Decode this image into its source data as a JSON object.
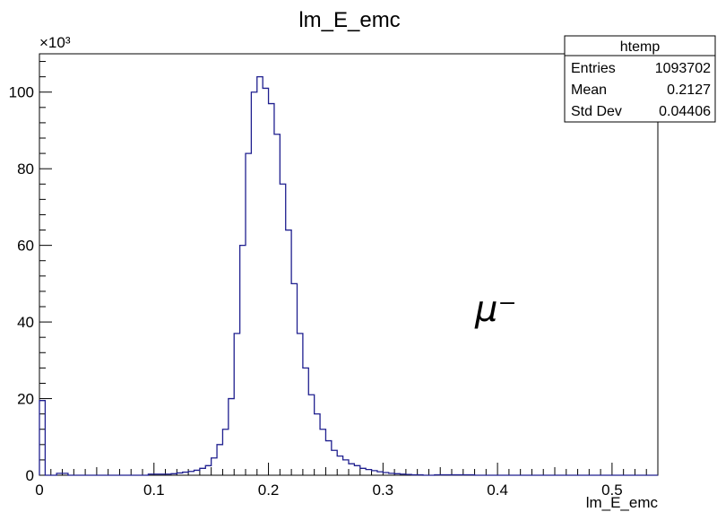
{
  "chart_data": {
    "type": "histogram",
    "title": "lm_E_emc",
    "xlabel": "lm_E_emc",
    "ylabel": "",
    "x_range": [
      0,
      0.54
    ],
    "y_range": [
      0,
      110000
    ],
    "bin_width": 0.005,
    "bin_start": 0,
    "y_multiplier_label": "×10³",
    "x_ticks": [
      0,
      0.1,
      0.2,
      0.3,
      0.4,
      0.5
    ],
    "x_tick_labels": [
      "0",
      "0.1",
      "0.2",
      "0.3",
      "0.4",
      "0.5"
    ],
    "y_ticks": [
      0,
      20000,
      40000,
      60000,
      80000,
      100000
    ],
    "y_tick_labels": [
      "0",
      "20",
      "40",
      "60",
      "80",
      "100"
    ],
    "line_color": "#1f1f8f",
    "annotation": "μ⁻",
    "grid": false,
    "values": [
      19500,
      0,
      0,
      500,
      500,
      0,
      0,
      0,
      0,
      0,
      0,
      0,
      0,
      0,
      0,
      0,
      0,
      0,
      0,
      300,
      300,
      300,
      300,
      400,
      600,
      800,
      1000,
      1300,
      1800,
      2500,
      4500,
      8000,
      12000,
      20000,
      37000,
      60000,
      84000,
      100000,
      104000,
      101000,
      97000,
      89000,
      76000,
      64000,
      50000,
      37000,
      28000,
      21000,
      16000,
      12000,
      9000,
      6500,
      5000,
      4000,
      3000,
      2500,
      1800,
      1500,
      1200,
      900,
      700,
      500,
      400,
      300,
      200,
      100,
      100,
      0,
      0,
      100,
      100,
      100,
      100,
      100,
      100,
      100,
      0,
      0,
      0,
      0,
      0,
      0,
      0,
      0,
      0,
      0,
      0,
      0,
      0,
      0,
      0,
      0,
      0,
      0,
      0,
      0,
      0,
      0,
      0,
      0,
      0,
      0,
      0,
      0,
      0,
      0,
      0,
      0
    ]
  },
  "stats_box": {
    "name": "htemp",
    "rows": [
      {
        "label": "Entries",
        "value": "1093702"
      },
      {
        "label": "Mean",
        "value": "0.2127"
      },
      {
        "label": "Std Dev",
        "value": "0.04406"
      }
    ]
  }
}
